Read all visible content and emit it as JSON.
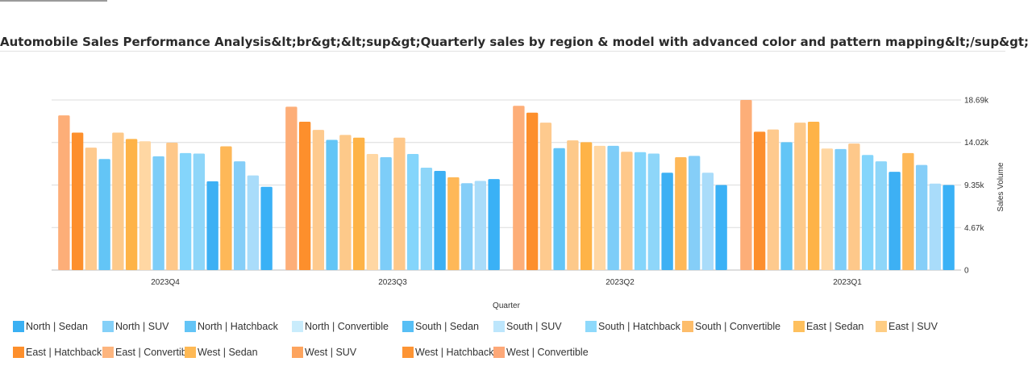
{
  "title": "Automobile Sales Performance Analysis&lt;br&gt;&lt;sup&gt;Quarterly sales by region & model with advanced color and pattern mapping&lt;/sup&gt;",
  "chart_data": {
    "type": "bar",
    "orientation": "vertical",
    "xlabel": "Quarter",
    "ylabel": "Sales Volume",
    "y_axis_side": "right",
    "ylim": [
      0,
      18690
    ],
    "yticks": [
      0,
      4670,
      9350,
      14020,
      18690
    ],
    "ytick_labels": [
      "0",
      "4.67k",
      "9.35k",
      "14.02k",
      "18.69k"
    ],
    "grid": true,
    "legend_position": "bottom",
    "categories": [
      "2023Q4",
      "2023Q3",
      "2023Q2",
      "2023Q1"
    ],
    "series": [
      {
        "name": "West | Convertible",
        "color": "#fdae78",
        "values": [
          17000,
          17950,
          18050,
          18690
        ]
      },
      {
        "name": "West | Hatchback",
        "color": "#fd8f2c",
        "values": [
          15100,
          16300,
          17300,
          15200
        ]
      },
      {
        "name": "West | SUV",
        "color": "#feca8e",
        "values": [
          13450,
          15400,
          16200,
          15450
        ]
      },
      {
        "name": "North | Sedan",
        "color": "#63c5f6",
        "values": [
          12200,
          14300,
          13400,
          14050
        ]
      },
      {
        "name": "North | SUV",
        "color": "#fdc98a",
        "values": [
          15100,
          14850,
          14250,
          16200
        ]
      },
      {
        "name": "North | Hatchback",
        "color": "#feb347",
        "values": [
          14400,
          14550,
          14050,
          16300
        ]
      },
      {
        "name": "North | Convertible",
        "color": "#ffd7a3",
        "values": [
          14150,
          12750,
          13650,
          13350
        ]
      },
      {
        "name": "South | Sedan",
        "color": "#7dcdf8",
        "values": [
          12500,
          12400,
          13650,
          13300
        ]
      },
      {
        "name": "South | SUV",
        "color": "#fec88a",
        "values": [
          14000,
          14550,
          13000,
          13900
        ]
      },
      {
        "name": "South | Hatchback",
        "color": "#84d5fb",
        "values": [
          12850,
          12750,
          12950,
          12650
        ]
      },
      {
        "name": "South | Convertible",
        "color": "#8ed6f9",
        "values": [
          12800,
          11250,
          12800,
          11950
        ]
      },
      {
        "name": "East | Sedan",
        "color": "#3db0f4",
        "values": [
          9750,
          10900,
          10700,
          10800
        ]
      },
      {
        "name": "East | SUV",
        "color": "#feb858",
        "values": [
          13600,
          10200,
          12400,
          12850
        ]
      },
      {
        "name": "East | Hatchback",
        "color": "#85cef8",
        "values": [
          11950,
          9550,
          12550,
          11550
        ]
      },
      {
        "name": "East | Convertible",
        "color": "#a9dcfa",
        "values": [
          10400,
          9800,
          10700,
          9500
        ]
      },
      {
        "name": "West | Sedan",
        "color": "#3ab1f6",
        "values": [
          9150,
          10000,
          9350,
          9350
        ]
      }
    ],
    "legend_entries": [
      {
        "name": "North | Sedan",
        "color": "#3ab0f3"
      },
      {
        "name": "North | SUV",
        "color": "#84d0f8"
      },
      {
        "name": "North | Hatchback",
        "color": "#63c4f6"
      },
      {
        "name": "North | Convertible",
        "color": "#c9ecfc"
      },
      {
        "name": "South | Sedan",
        "color": "#57bff5"
      },
      {
        "name": "South | SUV",
        "color": "#bde6fc"
      },
      {
        "name": "South | Hatchback",
        "color": "#8ed9fb"
      },
      {
        "name": "South | Convertible",
        "color": "#fdbd6b"
      },
      {
        "name": "East | Sedan",
        "color": "#fec05e"
      },
      {
        "name": "East | SUV",
        "color": "#fecd84"
      },
      {
        "name": "East | Hatchback",
        "color": "#fd8f2c"
      },
      {
        "name": "East | Convertible",
        "color": "#fdb57e"
      },
      {
        "name": "West | Sedan",
        "color": "#feb955"
      },
      {
        "name": "West | SUV",
        "color": "#fda45e"
      },
      {
        "name": "West | Hatchback",
        "color": "#fd9434"
      },
      {
        "name": "West | Convertible",
        "color": "#fda878"
      }
    ]
  }
}
